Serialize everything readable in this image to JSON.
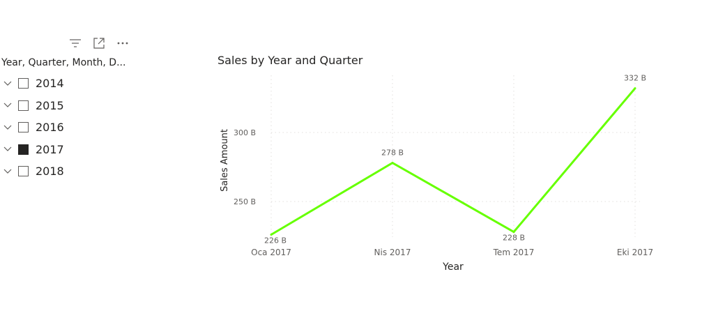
{
  "slicer": {
    "header": "Year, Quarter, Month, D...",
    "items": [
      {
        "label": "2014",
        "checked": false
      },
      {
        "label": "2015",
        "checked": false
      },
      {
        "label": "2016",
        "checked": false
      },
      {
        "label": "2017",
        "checked": true
      },
      {
        "label": "2018",
        "checked": false
      }
    ]
  },
  "toolbar": {
    "icons": [
      "filter-icon",
      "focus-mode-icon",
      "more-options-icon"
    ]
  },
  "chart_data": {
    "type": "line",
    "title": "Sales by Year and Quarter",
    "xlabel": "Year",
    "ylabel": "Sales Amount",
    "categories": [
      "Oca 2017",
      "Nis 2017",
      "Tem 2017",
      "Eki 2017"
    ],
    "series": [
      {
        "values": [
          226,
          278,
          228,
          332
        ],
        "color": "#66ff00"
      }
    ],
    "data_labels": [
      "226 B",
      "278 B",
      "228 B",
      "332 B"
    ],
    "yticks": [
      250,
      300
    ],
    "ytick_labels": [
      "250 B",
      "300 B"
    ],
    "grid": "dotted",
    "gridline_color": "#e1dfdd"
  }
}
